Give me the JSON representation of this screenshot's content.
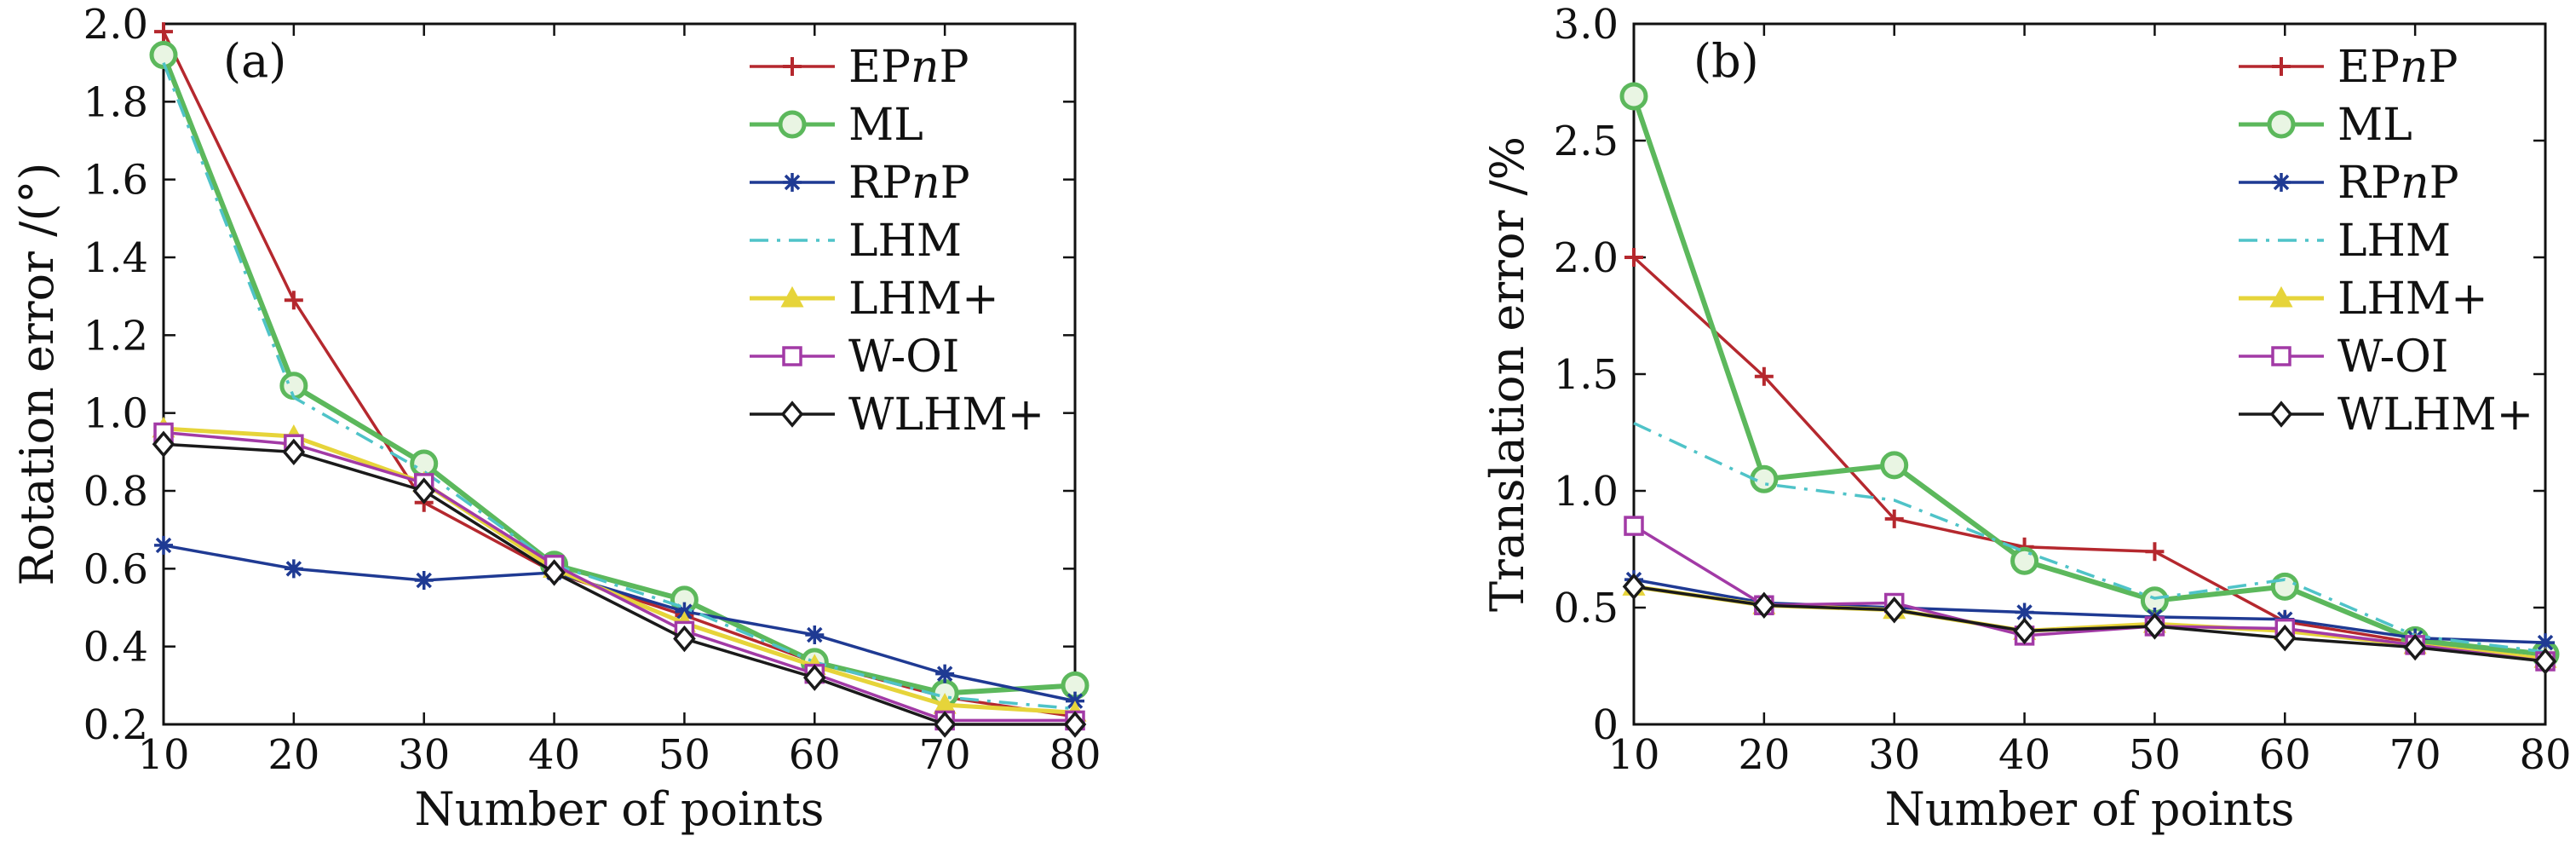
{
  "chart_data": [
    {
      "type": "line",
      "panel_label": "(a)",
      "xlabel": "Number of points",
      "ylabel": "Rotation error /(°)",
      "x": [
        10,
        20,
        30,
        40,
        50,
        60,
        70,
        80
      ],
      "xlim": [
        10,
        80
      ],
      "ylim": [
        0.2,
        2.0
      ],
      "xticks": [
        "10",
        "20",
        "30",
        "40",
        "50",
        "60",
        "70",
        "80"
      ],
      "yticks": [
        "0.2",
        "0.4",
        "0.6",
        "0.8",
        "1.0",
        "1.2",
        "1.4",
        "1.6",
        "1.8",
        "2.0"
      ],
      "yticks_values": [
        0.2,
        0.4,
        0.6,
        0.8,
        1.0,
        1.2,
        1.4,
        1.6,
        1.8,
        2.0
      ],
      "legend_position": "top-right",
      "series": [
        {
          "name": "EPnP",
          "name_pre": "EP",
          "name_italic": "n",
          "name_post": "P",
          "color": "#b5282e",
          "marker": "plus",
          "values": [
            1.98,
            1.29,
            0.77,
            0.59,
            0.48,
            0.36,
            0.27,
            0.22
          ]
        },
        {
          "name": "ML",
          "color": "#5cb85c",
          "marker": "circle",
          "values": [
            1.92,
            1.07,
            0.87,
            0.61,
            0.52,
            0.36,
            0.28,
            0.3
          ]
        },
        {
          "name": "RPnP",
          "name_pre": "RP",
          "name_italic": "n",
          "name_post": "P",
          "color": "#1f3a93",
          "marker": "asterisk",
          "values": [
            0.66,
            0.6,
            0.57,
            0.59,
            0.49,
            0.43,
            0.33,
            0.26
          ]
        },
        {
          "name": "LHM",
          "color": "#4fc3c8",
          "marker": "none",
          "dash": "dashdot",
          "values": [
            1.9,
            1.04,
            0.85,
            0.61,
            0.5,
            0.36,
            0.27,
            0.24
          ]
        },
        {
          "name": "LHM+",
          "color": "#e6d43a",
          "marker": "triangle",
          "values": [
            0.96,
            0.94,
            0.82,
            0.6,
            0.46,
            0.35,
            0.25,
            0.23
          ]
        },
        {
          "name": "W-OI",
          "color": "#a23aa6",
          "marker": "square",
          "values": [
            0.95,
            0.92,
            0.82,
            0.61,
            0.44,
            0.33,
            0.21,
            0.21
          ]
        },
        {
          "name": "WLHM+",
          "color": "#1a1a1a",
          "marker": "diamond",
          "values": [
            0.92,
            0.9,
            0.8,
            0.59,
            0.42,
            0.32,
            0.2,
            0.2
          ]
        }
      ]
    },
    {
      "type": "line",
      "panel_label": "(b)",
      "xlabel": "Number of points",
      "ylabel": "Translation error /%",
      "x": [
        10,
        20,
        30,
        40,
        50,
        60,
        70,
        80
      ],
      "xlim": [
        10,
        80
      ],
      "ylim": [
        0,
        3.0
      ],
      "xticks": [
        "10",
        "20",
        "30",
        "40",
        "50",
        "60",
        "70",
        "80"
      ],
      "yticks": [
        "0",
        "0.5",
        "1.0",
        "1.5",
        "2.0",
        "2.5",
        "3.0"
      ],
      "yticks_values": [
        0,
        0.5,
        1.0,
        1.5,
        2.0,
        2.5,
        3.0
      ],
      "legend_position": "top-right",
      "series": [
        {
          "name": "EPnP",
          "name_pre": "EP",
          "name_italic": "n",
          "name_post": "P",
          "color": "#b5282e",
          "marker": "plus",
          "values": [
            2.0,
            1.49,
            0.88,
            0.76,
            0.74,
            0.44,
            0.35,
            0.28
          ]
        },
        {
          "name": "ML",
          "color": "#5cb85c",
          "marker": "circle",
          "values": [
            2.69,
            1.05,
            1.11,
            0.7,
            0.53,
            0.59,
            0.36,
            0.3
          ]
        },
        {
          "name": "RPnP",
          "name_pre": "RP",
          "name_italic": "n",
          "name_post": "P",
          "color": "#1f3a93",
          "marker": "asterisk",
          "values": [
            0.62,
            0.52,
            0.5,
            0.48,
            0.46,
            0.45,
            0.37,
            0.35
          ]
        },
        {
          "name": "LHM",
          "color": "#4fc3c8",
          "marker": "none",
          "dash": "dashdot",
          "values": [
            1.29,
            1.03,
            0.96,
            0.74,
            0.54,
            0.62,
            0.38,
            0.31
          ]
        },
        {
          "name": "LHM+",
          "color": "#e6d43a",
          "marker": "triangle",
          "values": [
            0.59,
            0.51,
            0.49,
            0.4,
            0.43,
            0.4,
            0.34,
            0.28
          ]
        },
        {
          "name": "W-OI",
          "color": "#a23aa6",
          "marker": "square",
          "values": [
            0.85,
            0.51,
            0.52,
            0.38,
            0.42,
            0.41,
            0.34,
            0.27
          ]
        },
        {
          "name": "WLHM+",
          "color": "#1a1a1a",
          "marker": "diamond",
          "values": [
            0.59,
            0.51,
            0.49,
            0.4,
            0.42,
            0.37,
            0.33,
            0.27
          ]
        }
      ]
    }
  ]
}
